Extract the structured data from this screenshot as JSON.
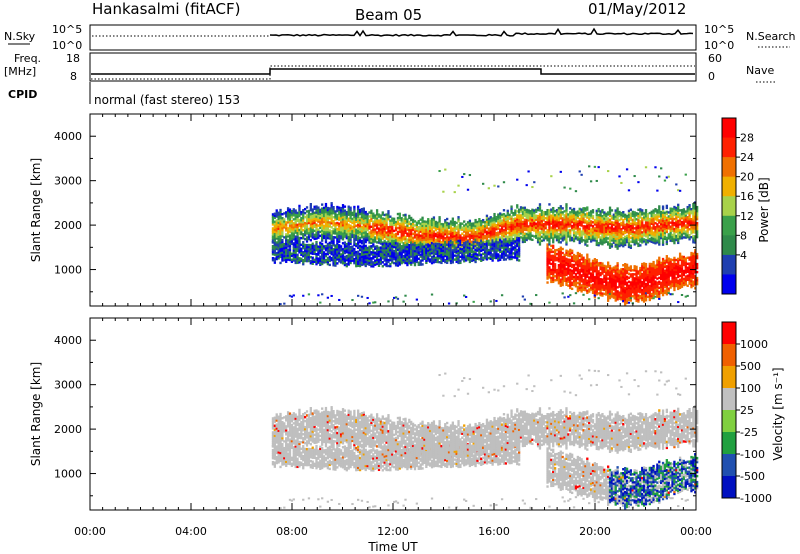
{
  "header": {
    "station": "Hankasalmi (fitACF)",
    "beam": "Beam 05",
    "date": "01/May/2012"
  },
  "top_panels": {
    "nsky_label": "N.Sky",
    "nsearch_label": "N.Search",
    "nsky_ticks": [
      "10^5",
      "10^0"
    ],
    "nsearch_ticks": [
      "10^5",
      "10^0"
    ],
    "freq_label": "Freq.",
    "freq_unit": "[MHz]",
    "freq_ticks": [
      "18",
      "8"
    ],
    "nave_label": "Nave",
    "nave_ticks": [
      "60",
      "0"
    ],
    "cpid_label": "CPID",
    "cpid_text": "normal (fast stereo) 153"
  },
  "colors": {
    "power_scale": [
      "#0000ee",
      "#1f3fb0",
      "#2f8a4a",
      "#3aa04a",
      "#a8d24a",
      "#f0b000",
      "#f07000",
      "#ff2000",
      "#ff0000"
    ],
    "velocity_scale": [
      "#0010c0",
      "#2050b0",
      "#20a040",
      "#80d040",
      "#c0c0c0",
      "#f0a000",
      "#f06000",
      "#ff0000"
    ],
    "ground_scatter": "#bfbfbf"
  },
  "chart_data": [
    {
      "type": "heatmap",
      "title": "Power",
      "ylabel": "Slant Range [km]",
      "yticks": [
        "4000",
        "3000",
        "2000",
        "1000"
      ],
      "ylim": [
        180,
        4500
      ],
      "xlim": [
        0,
        24
      ],
      "colorbar": {
        "label": "Power [dB]",
        "ticks": [
          "28",
          "24",
          "20",
          "16",
          "12",
          "8",
          "4"
        ]
      },
      "bands": [
        {
          "name": "main",
          "points": [
            [
              7.2,
              1900
            ],
            [
              9,
              2050
            ],
            [
              11,
              1950
            ],
            [
              13,
              1750
            ],
            [
              15,
              1700
            ],
            [
              17,
              2000
            ],
            [
              19,
              2000
            ],
            [
              21,
              1900
            ],
            [
              24,
              2050
            ]
          ],
          "width": 380
        },
        {
          "name": "lower",
          "points": [
            [
              7.2,
              1400
            ],
            [
              9,
              1350
            ],
            [
              11,
              1300
            ],
            [
              13,
              1350
            ],
            [
              15,
              1400
            ],
            [
              17,
              1450
            ]
          ],
          "width": 220
        },
        {
          "name": "near",
          "points": [
            [
              18,
              1150
            ],
            [
              19,
              1000
            ],
            [
              20,
              800
            ],
            [
              21,
              650
            ],
            [
              22,
              700
            ],
            [
              23,
              900
            ],
            [
              24,
              1000
            ]
          ],
          "width": 380
        }
      ]
    },
    {
      "type": "heatmap",
      "title": "Velocity",
      "ylabel": "Slant Range [km]",
      "yticks": [
        "4000",
        "3000",
        "2000",
        "1000"
      ],
      "ylim": [
        180,
        4500
      ],
      "xlim": [
        0,
        24
      ],
      "colorbar": {
        "label": "Velocity [m s⁻¹]",
        "ticks": [
          "1000",
          "500",
          "100",
          "25",
          "-25",
          "-100",
          "-500",
          "-1000"
        ]
      }
    }
  ],
  "time_axis": {
    "xlabel": "Time UT",
    "ticks": [
      "00:00",
      "04:00",
      "08:00",
      "12:00",
      "16:00",
      "20:00",
      "00:00"
    ]
  }
}
